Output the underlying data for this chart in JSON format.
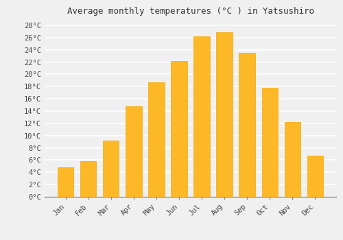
{
  "months": [
    "Jan",
    "Feb",
    "Mar",
    "Apr",
    "May",
    "Jun",
    "Jul",
    "Aug",
    "Sep",
    "Oct",
    "Nov",
    "Dec"
  ],
  "temperatures": [
    4.8,
    5.8,
    9.2,
    14.8,
    18.7,
    22.2,
    26.2,
    26.9,
    23.5,
    17.8,
    12.2,
    6.7
  ],
  "bar_color": "#FDB827",
  "bar_edge_color": "#F5A800",
  "title": "Average monthly temperatures (°C ) in Yatsushiro",
  "ylim": [
    0,
    29
  ],
  "yticks": [
    0,
    2,
    4,
    6,
    8,
    10,
    12,
    14,
    16,
    18,
    20,
    22,
    24,
    26,
    28
  ],
  "background_color": "#f0f0f0",
  "grid_color": "#ffffff",
  "title_fontsize": 9,
  "tick_fontsize": 7.5,
  "font_family": "monospace",
  "bar_width": 0.7
}
